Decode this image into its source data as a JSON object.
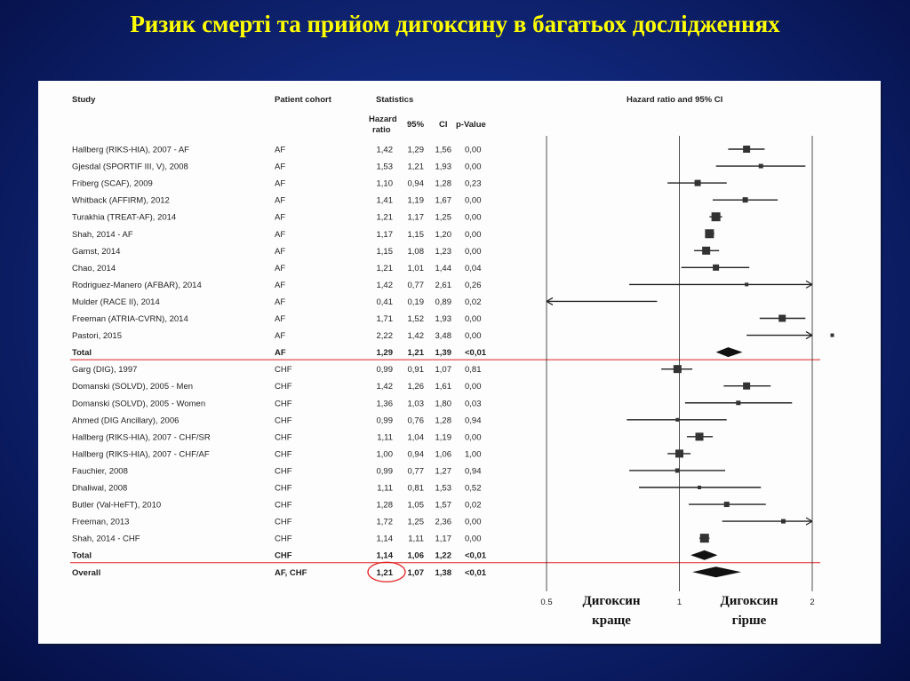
{
  "slide": {
    "title": "Ризик смерті та прийом дигоксину в багатьох дослідженнях"
  },
  "headers": {
    "study": "Study",
    "cohort": "Patient cohort",
    "statistics": "Statistics",
    "hr_line1": "Hazard",
    "hr_line2": "ratio",
    "ci95": "95%",
    "ci": "CI",
    "pvalue": "p-Value",
    "plot": "Hazard ratio and 95% CI"
  },
  "axis_ticks": [
    "0.5",
    "1",
    "2"
  ],
  "labels": {
    "better_line1": "Дигоксин",
    "better_line2": "краще",
    "worse_line1": "Дигоксин",
    "worse_line2": "гірше"
  },
  "colors": {
    "title": "#ffff00",
    "separator": "#e0201f",
    "highlight_circle": "#e0201f",
    "ink": "#222222"
  },
  "chart_data": {
    "type": "forest",
    "scale": "log",
    "xlim": [
      0.5,
      2
    ],
    "rows": [
      {
        "study": "Hallberg (RIKS-HIA), 2007 - AF",
        "cohort": "AF",
        "hr": "1,42",
        "lo": "1,29",
        "hi": "1,56",
        "p": "0,00",
        "v": 1.42,
        "l": 1.29,
        "u": 1.56,
        "kind": "study",
        "w": 8
      },
      {
        "study": "Gjesdal (SPORTIF III, V), 2008",
        "cohort": "AF",
        "hr": "1,53",
        "lo": "1,21",
        "hi": "1,93",
        "p": "0,00",
        "v": 1.53,
        "l": 1.21,
        "u": 1.93,
        "kind": "study",
        "w": 5
      },
      {
        "study": "Friberg (SCAF), 2009",
        "cohort": "AF",
        "hr": "1,10",
        "lo": "0,94",
        "hi": "1,28",
        "p": "0,23",
        "v": 1.1,
        "l": 0.94,
        "u": 1.28,
        "kind": "study",
        "w": 7
      },
      {
        "study": "Whitback (AFFIRM), 2012",
        "cohort": "AF",
        "hr": "1,41",
        "lo": "1,19",
        "hi": "1,67",
        "p": "0,00",
        "v": 1.41,
        "l": 1.19,
        "u": 1.67,
        "kind": "study",
        "w": 6
      },
      {
        "study": "Turakhia (TREAT-AF), 2014",
        "cohort": "AF",
        "hr": "1,21",
        "lo": "1,17",
        "hi": "1,25",
        "p": "0,00",
        "v": 1.21,
        "l": 1.17,
        "u": 1.25,
        "kind": "study",
        "w": 10
      },
      {
        "study": "Shah, 2014 - AF",
        "cohort": "AF",
        "hr": "1,17",
        "lo": "1,15",
        "hi": "1,20",
        "p": "0,00",
        "v": 1.17,
        "l": 1.15,
        "u": 1.2,
        "kind": "study",
        "w": 10
      },
      {
        "study": "Gamst, 2014",
        "cohort": "AF",
        "hr": "1,15",
        "lo": "1,08",
        "hi": "1,23",
        "p": "0,00",
        "v": 1.15,
        "l": 1.08,
        "u": 1.23,
        "kind": "study",
        "w": 9
      },
      {
        "study": "Chao, 2014",
        "cohort": "AF",
        "hr": "1,21",
        "lo": "1,01",
        "hi": "1,44",
        "p": "0,04",
        "v": 1.21,
        "l": 1.01,
        "u": 1.44,
        "kind": "study",
        "w": 7
      },
      {
        "study": "Rodriguez-Manero (AFBAR), 2014",
        "cohort": "AF",
        "hr": "1,42",
        "lo": "0,77",
        "hi": "2,61",
        "p": "0,26",
        "v": 1.42,
        "l": 0.77,
        "u": 2.61,
        "kind": "study",
        "w": 4
      },
      {
        "study": "Mulder (RACE II), 2014",
        "cohort": "AF",
        "hr": "0,41",
        "lo": "0,19",
        "hi": "0,89",
        "p": "0,02",
        "v": 0.41,
        "l": 0.19,
        "u": 0.89,
        "kind": "study",
        "w": 3
      },
      {
        "study": "Freeman (ATRIA-CVRN), 2014",
        "cohort": "AF",
        "hr": "1,71",
        "lo": "1,52",
        "hi": "1,93",
        "p": "0,00",
        "v": 1.71,
        "l": 1.52,
        "u": 1.93,
        "kind": "study",
        "w": 8
      },
      {
        "study": "Pastori, 2015",
        "cohort": "AF",
        "hr": "2,22",
        "lo": "1,42",
        "hi": "3,48",
        "p": "0,00",
        "v": 2.22,
        "l": 1.42,
        "u": 3.48,
        "kind": "study",
        "w": 4
      },
      {
        "study": "Total",
        "cohort": "AF",
        "hr": "1,29",
        "lo": "1,21",
        "hi": "1,39",
        "p": "<0,01",
        "v": 1.29,
        "l": 1.21,
        "u": 1.39,
        "kind": "total",
        "w": 0
      },
      {
        "study": "Garg (DIG), 1997",
        "cohort": "CHF",
        "hr": "0,99",
        "lo": "0,91",
        "hi": "1,07",
        "p": "0,81",
        "v": 0.99,
        "l": 0.91,
        "u": 1.07,
        "kind": "study",
        "w": 9
      },
      {
        "study": "Domanski (SOLVD), 2005 - Men",
        "cohort": "CHF",
        "hr": "1,42",
        "lo": "1,26",
        "hi": "1,61",
        "p": "0,00",
        "v": 1.42,
        "l": 1.26,
        "u": 1.61,
        "kind": "study",
        "w": 8
      },
      {
        "study": "Domanski (SOLVD), 2005 - Women",
        "cohort": "CHF",
        "hr": "1,36",
        "lo": "1,03",
        "hi": "1,80",
        "p": "0,03",
        "v": 1.36,
        "l": 1.03,
        "u": 1.8,
        "kind": "study",
        "w": 5
      },
      {
        "study": "Ahmed (DIG Ancillary), 2006",
        "cohort": "CHF",
        "hr": "0,99",
        "lo": "0,76",
        "hi": "1,28",
        "p": "0,94",
        "v": 0.99,
        "l": 0.76,
        "u": 1.28,
        "kind": "study",
        "w": 4
      },
      {
        "study": "Hallberg (RIKS-HIA), 2007 - CHF/SR",
        "cohort": "CHF",
        "hr": "1,11",
        "lo": "1,04",
        "hi": "1,19",
        "p": "0,00",
        "v": 1.11,
        "l": 1.04,
        "u": 1.19,
        "kind": "study",
        "w": 9
      },
      {
        "study": "Hallberg (RIKS-HIA), 2007 - CHF/AF",
        "cohort": "CHF",
        "hr": "1,00",
        "lo": "0,94",
        "hi": "1,06",
        "p": "1,00",
        "v": 1.0,
        "l": 0.94,
        "u": 1.06,
        "kind": "study",
        "w": 9
      },
      {
        "study": "Fauchier, 2008",
        "cohort": "CHF",
        "hr": "0,99",
        "lo": "0,77",
        "hi": "1,27",
        "p": "0,94",
        "v": 0.99,
        "l": 0.77,
        "u": 1.27,
        "kind": "study",
        "w": 5
      },
      {
        "study": "Dhaliwal, 2008",
        "cohort": "CHF",
        "hr": "1,11",
        "lo": "0,81",
        "hi": "1,53",
        "p": "0,52",
        "v": 1.11,
        "l": 0.81,
        "u": 1.53,
        "kind": "study",
        "w": 4
      },
      {
        "study": "Butler (Val-HeFT), 2010",
        "cohort": "CHF",
        "hr": "1,28",
        "lo": "1,05",
        "hi": "1,57",
        "p": "0,02",
        "v": 1.28,
        "l": 1.05,
        "u": 1.57,
        "kind": "study",
        "w": 6
      },
      {
        "study": "Freeman, 2013",
        "cohort": "CHF",
        "hr": "1,72",
        "lo": "1,25",
        "hi": "2,36",
        "p": "0,00",
        "v": 1.72,
        "l": 1.25,
        "u": 2.36,
        "kind": "study",
        "w": 5
      },
      {
        "study": "Shah, 2014 - CHF",
        "cohort": "CHF",
        "hr": "1,14",
        "lo": "1,11",
        "hi": "1,17",
        "p": "0,00",
        "v": 1.14,
        "l": 1.11,
        "u": 1.17,
        "kind": "study",
        "w": 10
      },
      {
        "study": "Total",
        "cohort": "CHF",
        "hr": "1,14",
        "lo": "1,06",
        "hi": "1,22",
        "p": "<0,01",
        "v": 1.14,
        "l": 1.06,
        "u": 1.22,
        "kind": "total",
        "w": 0
      },
      {
        "study": "Overall",
        "cohort": "AF, CHF",
        "hr": "1,21",
        "lo": "1,07",
        "hi": "1,38",
        "p": "<0,01",
        "v": 1.21,
        "l": 1.07,
        "u": 1.38,
        "kind": "overall",
        "w": 0
      }
    ]
  }
}
